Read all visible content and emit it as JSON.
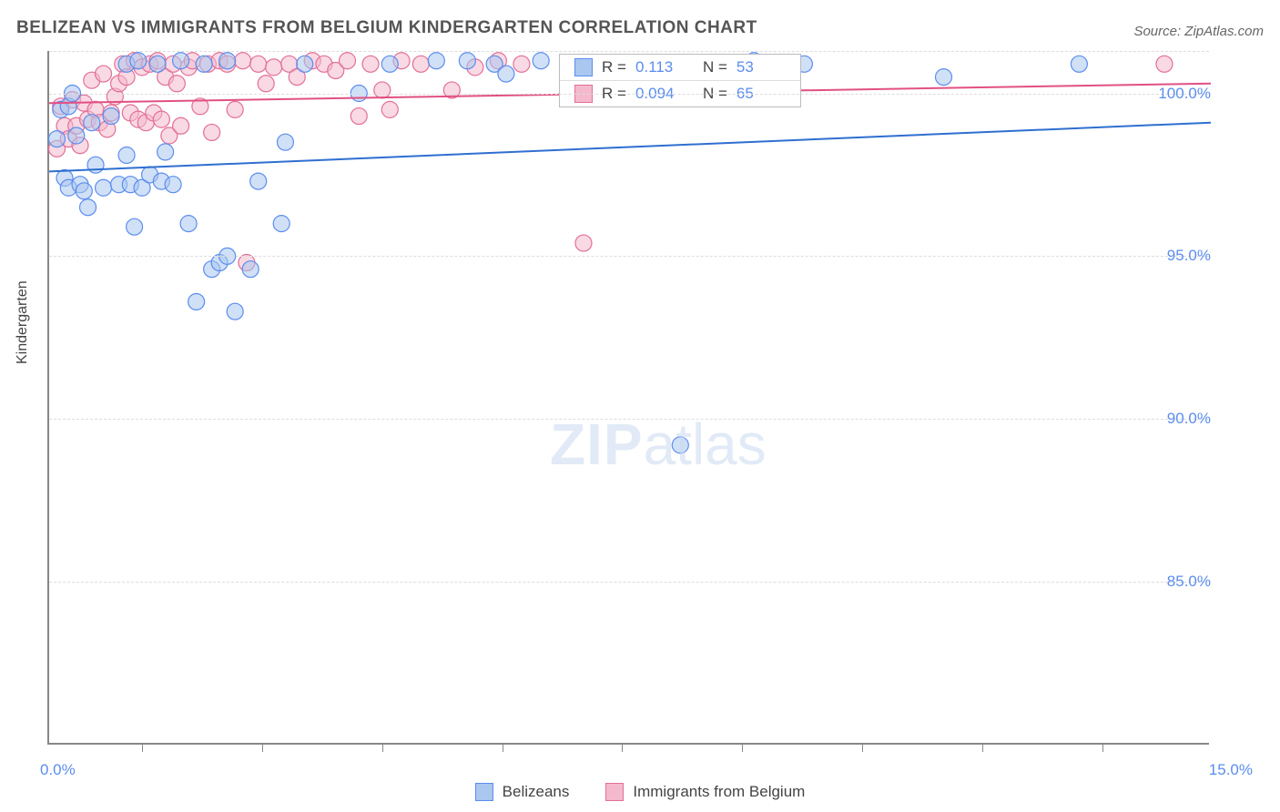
{
  "title": "BELIZEAN VS IMMIGRANTS FROM BELGIUM KINDERGARTEN CORRELATION CHART",
  "source": "Source: ZipAtlas.com",
  "watermark_a": "ZIP",
  "watermark_b": "atlas",
  "chart": {
    "type": "scatter",
    "y_axis_label": "Kindergarten",
    "xlim": [
      0.0,
      15.0
    ],
    "ylim": [
      80.0,
      101.3
    ],
    "x_min_label": "0.0%",
    "x_max_label": "15.0%",
    "y_ticks": [
      85.0,
      90.0,
      95.0,
      100.0
    ],
    "y_tick_labels": [
      "85.0%",
      "90.0%",
      "95.0%",
      "100.0%"
    ],
    "x_tick_positions": [
      1.2,
      2.75,
      4.3,
      5.85,
      7.4,
      8.95,
      10.5,
      12.05,
      13.6
    ],
    "background_color": "#ffffff",
    "grid_color": "#dddddd",
    "marker_radius": 9,
    "marker_opacity": 0.55,
    "line_width": 2,
    "series": [
      {
        "name": "Belizeans",
        "color_fill": "#a9c7ef",
        "color_stroke": "#5b8def",
        "line_color": "#2f6fd0",
        "R": "0.113",
        "N": "53",
        "trend": {
          "y_at_xmin": 97.6,
          "y_at_xmax": 99.1
        },
        "points": [
          [
            0.1,
            98.6
          ],
          [
            0.15,
            99.5
          ],
          [
            0.2,
            97.4
          ],
          [
            0.25,
            97.1
          ],
          [
            0.25,
            99.6
          ],
          [
            0.3,
            100.0
          ],
          [
            0.35,
            98.7
          ],
          [
            0.4,
            97.2
          ],
          [
            0.45,
            97.0
          ],
          [
            0.5,
            96.5
          ],
          [
            0.55,
            99.1
          ],
          [
            0.6,
            97.8
          ],
          [
            0.7,
            97.1
          ],
          [
            0.8,
            99.3
          ],
          [
            0.9,
            97.2
          ],
          [
            1.0,
            100.9
          ],
          [
            1.0,
            98.1
          ],
          [
            1.05,
            97.2
          ],
          [
            1.1,
            95.9
          ],
          [
            1.15,
            101.0
          ],
          [
            1.2,
            97.1
          ],
          [
            1.3,
            97.5
          ],
          [
            1.4,
            100.9
          ],
          [
            1.45,
            97.3
          ],
          [
            1.5,
            98.2
          ],
          [
            1.6,
            97.2
          ],
          [
            1.7,
            101.0
          ],
          [
            1.8,
            96.0
          ],
          [
            1.9,
            93.6
          ],
          [
            2.0,
            100.9
          ],
          [
            2.1,
            94.6
          ],
          [
            2.2,
            94.8
          ],
          [
            2.3,
            101.0
          ],
          [
            2.3,
            95.0
          ],
          [
            2.4,
            93.3
          ],
          [
            2.6,
            94.6
          ],
          [
            2.7,
            97.3
          ],
          [
            3.0,
            96.0
          ],
          [
            3.05,
            98.5
          ],
          [
            3.3,
            100.9
          ],
          [
            4.0,
            100.0
          ],
          [
            4.4,
            100.9
          ],
          [
            5.0,
            101.0
          ],
          [
            5.4,
            101.0
          ],
          [
            5.75,
            100.9
          ],
          [
            5.9,
            100.6
          ],
          [
            6.35,
            101.0
          ],
          [
            7.5,
            100.9
          ],
          [
            8.15,
            89.2
          ],
          [
            9.1,
            101.0
          ],
          [
            9.75,
            100.9
          ],
          [
            11.55,
            100.5
          ],
          [
            13.3,
            100.9
          ]
        ]
      },
      {
        "name": "Immigrants from Belgium",
        "color_fill": "#f4b9cc",
        "color_stroke": "#e36f97",
        "line_color": "#e15084",
        "R": "0.094",
        "N": "65",
        "trend": {
          "y_at_xmin": 99.7,
          "y_at_xmax": 100.3
        },
        "points": [
          [
            0.1,
            98.3
          ],
          [
            0.15,
            99.6
          ],
          [
            0.2,
            99.0
          ],
          [
            0.25,
            98.6
          ],
          [
            0.3,
            99.8
          ],
          [
            0.35,
            99.0
          ],
          [
            0.4,
            98.4
          ],
          [
            0.45,
            99.7
          ],
          [
            0.5,
            99.2
          ],
          [
            0.55,
            100.4
          ],
          [
            0.6,
            99.5
          ],
          [
            0.65,
            99.1
          ],
          [
            0.7,
            100.6
          ],
          [
            0.75,
            98.9
          ],
          [
            0.8,
            99.4
          ],
          [
            0.85,
            99.9
          ],
          [
            0.9,
            100.3
          ],
          [
            0.95,
            100.9
          ],
          [
            1.0,
            100.5
          ],
          [
            1.05,
            99.4
          ],
          [
            1.1,
            101.0
          ],
          [
            1.15,
            99.2
          ],
          [
            1.2,
            100.8
          ],
          [
            1.25,
            99.1
          ],
          [
            1.3,
            100.9
          ],
          [
            1.35,
            99.4
          ],
          [
            1.4,
            101.0
          ],
          [
            1.45,
            99.2
          ],
          [
            1.5,
            100.5
          ],
          [
            1.55,
            98.7
          ],
          [
            1.6,
            100.9
          ],
          [
            1.65,
            100.3
          ],
          [
            1.7,
            99.0
          ],
          [
            1.8,
            100.8
          ],
          [
            1.85,
            101.0
          ],
          [
            1.95,
            99.6
          ],
          [
            2.05,
            100.9
          ],
          [
            2.1,
            98.8
          ],
          [
            2.2,
            101.0
          ],
          [
            2.3,
            100.9
          ],
          [
            2.4,
            99.5
          ],
          [
            2.5,
            101.0
          ],
          [
            2.55,
            94.8
          ],
          [
            2.7,
            100.9
          ],
          [
            2.8,
            100.3
          ],
          [
            2.9,
            100.8
          ],
          [
            3.1,
            100.9
          ],
          [
            3.2,
            100.5
          ],
          [
            3.4,
            101.0
          ],
          [
            3.55,
            100.9
          ],
          [
            3.7,
            100.7
          ],
          [
            3.85,
            101.0
          ],
          [
            4.0,
            99.3
          ],
          [
            4.15,
            100.9
          ],
          [
            4.3,
            100.1
          ],
          [
            4.4,
            99.5
          ],
          [
            4.55,
            101.0
          ],
          [
            4.8,
            100.9
          ],
          [
            5.2,
            100.1
          ],
          [
            5.5,
            100.8
          ],
          [
            5.8,
            101.0
          ],
          [
            6.1,
            100.9
          ],
          [
            6.9,
            95.4
          ],
          [
            9.0,
            100.9
          ],
          [
            14.4,
            100.9
          ]
        ]
      }
    ]
  },
  "legend_bottom": {
    "items": [
      {
        "label": "Belizeans",
        "fill": "#a9c7ef",
        "stroke": "#5b8def"
      },
      {
        "label": "Immigrants from Belgium",
        "fill": "#f4b9cc",
        "stroke": "#e36f97"
      }
    ]
  }
}
